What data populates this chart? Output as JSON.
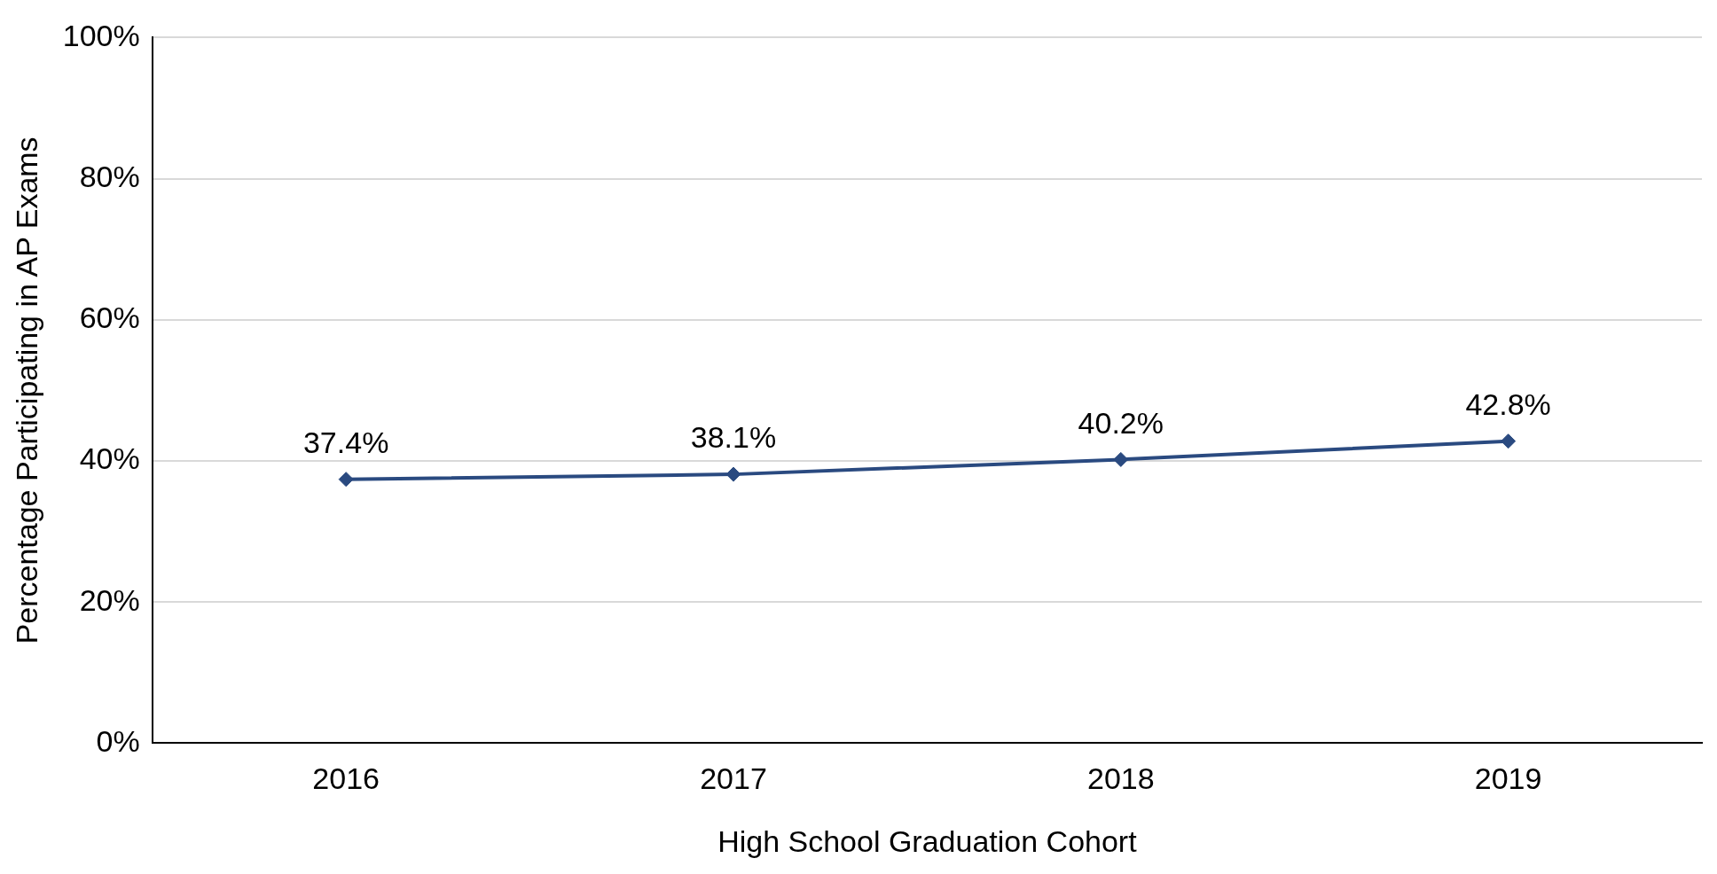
{
  "chart_data": {
    "type": "line",
    "xlabel": "High School Graduation Cohort",
    "ylabel": "Percentage Participating in AP Exams",
    "categories": [
      "2016",
      "2017",
      "2018",
      "2019"
    ],
    "series": [
      {
        "color": "#2a4a80",
        "values": [
          37.4,
          38.1,
          40.2,
          42.8
        ]
      }
    ],
    "value_labels": [
      "37.4%",
      "38.1%",
      "40.2%",
      "42.8%"
    ],
    "ylim": [
      0,
      100
    ],
    "yticks": [
      {
        "value": 0,
        "label": "0%"
      },
      {
        "value": 20,
        "label": "20%"
      },
      {
        "value": 40,
        "label": "40%"
      },
      {
        "value": 60,
        "label": "60%"
      },
      {
        "value": 80,
        "label": "80%"
      },
      {
        "value": 100,
        "label": "100%"
      }
    ],
    "grid": "y",
    "legend": false,
    "marker": "diamond",
    "line_style": "solid"
  }
}
